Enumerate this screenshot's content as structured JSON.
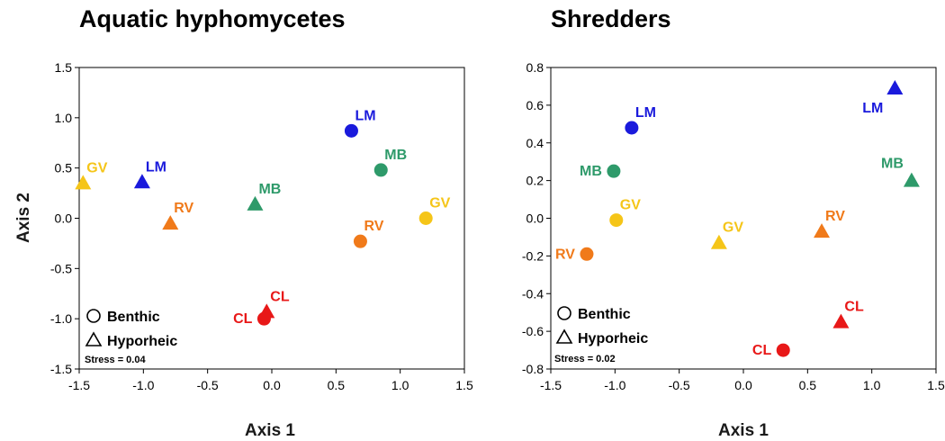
{
  "chart_data": [
    {
      "type": "scatter",
      "title": "Aquatic hyphomycetes",
      "xlabel": "Axis 1",
      "ylabel": "Axis 2",
      "xlim": [
        -1.5,
        1.5
      ],
      "ylim": [
        -1.5,
        1.5
      ],
      "xticks": [
        "-1.5",
        "-1.0",
        "-0.5",
        "0.0",
        "0.5",
        "1.0",
        "1.5"
      ],
      "yticks": [
        "-1.5",
        "-1.0",
        "-0.5",
        "0.0",
        "0.5",
        "1.0",
        "1.5"
      ],
      "legend": {
        "position": "bottom-left",
        "benthic": "Benthic",
        "hyporheic": "Hyporheic"
      },
      "stress": "Stress = 0.04",
      "points": [
        {
          "label": "LM",
          "habitat": "benthic",
          "x": 0.62,
          "y": 0.87,
          "color": "#1a1adc",
          "label_pos": "above-right"
        },
        {
          "label": "MB",
          "habitat": "benthic",
          "x": 0.85,
          "y": 0.48,
          "color": "#2e9a6a",
          "label_pos": "above-right"
        },
        {
          "label": "GV",
          "habitat": "benthic",
          "x": 1.2,
          "y": 0.0,
          "color": "#f5c518",
          "label_pos": "above-right"
        },
        {
          "label": "RV",
          "habitat": "benthic",
          "x": 0.69,
          "y": -0.23,
          "color": "#f07a1a",
          "label_pos": "above-right"
        },
        {
          "label": "CL",
          "habitat": "benthic",
          "x": -0.06,
          "y": -1.0,
          "color": "#e81818",
          "label_pos": "left"
        },
        {
          "label": "GV",
          "habitat": "hyporheic",
          "x": -1.47,
          "y": 0.35,
          "color": "#f5c518",
          "label_pos": "above-right"
        },
        {
          "label": "LM",
          "habitat": "hyporheic",
          "x": -1.01,
          "y": 0.36,
          "color": "#1a1adc",
          "label_pos": "above-right"
        },
        {
          "label": "RV",
          "habitat": "hyporheic",
          "x": -0.79,
          "y": -0.05,
          "color": "#f07a1a",
          "label_pos": "above-right"
        },
        {
          "label": "MB",
          "habitat": "hyporheic",
          "x": -0.13,
          "y": 0.14,
          "color": "#2e9a6a",
          "label_pos": "above-right"
        },
        {
          "label": "CL",
          "habitat": "hyporheic",
          "x": -0.04,
          "y": -0.93,
          "color": "#e81818",
          "label_pos": "above-right"
        }
      ]
    },
    {
      "type": "scatter",
      "title": "Shredders",
      "xlabel": "Axis 1",
      "ylabel": "",
      "xlim": [
        -1.5,
        1.5
      ],
      "ylim": [
        -0.8,
        0.8
      ],
      "xticks": [
        "-1.5",
        "-1.0",
        "-0.5",
        "0.0",
        "0.5",
        "1.0",
        "1.5"
      ],
      "yticks": [
        "-0.8",
        "-0.6",
        "-0.4",
        "-0.2",
        "0.0",
        "0.2",
        "0.4",
        "0.6",
        "0.8"
      ],
      "legend": {
        "position": "bottom-left",
        "benthic": "Benthic",
        "hyporheic": "Hyporheic"
      },
      "stress": "Stress = 0.02",
      "points": [
        {
          "label": "LM",
          "habitat": "benthic",
          "x": -0.87,
          "y": 0.48,
          "color": "#1a1adc",
          "label_pos": "above-right"
        },
        {
          "label": "MB",
          "habitat": "benthic",
          "x": -1.01,
          "y": 0.25,
          "color": "#2e9a6a",
          "label_pos": "left"
        },
        {
          "label": "GV",
          "habitat": "benthic",
          "x": -0.99,
          "y": -0.01,
          "color": "#f5c518",
          "label_pos": "above-right"
        },
        {
          "label": "RV",
          "habitat": "benthic",
          "x": -1.22,
          "y": -0.19,
          "color": "#f07a1a",
          "label_pos": "left"
        },
        {
          "label": "CL",
          "habitat": "benthic",
          "x": 0.31,
          "y": -0.7,
          "color": "#e81818",
          "label_pos": "left"
        },
        {
          "label": "LM",
          "habitat": "hyporheic",
          "x": 1.18,
          "y": 0.69,
          "color": "#1a1adc",
          "label_pos": "below-left"
        },
        {
          "label": "MB",
          "habitat": "hyporheic",
          "x": 1.31,
          "y": 0.2,
          "color": "#2e9a6a",
          "label_pos": "above-left"
        },
        {
          "label": "RV",
          "habitat": "hyporheic",
          "x": 0.61,
          "y": -0.07,
          "color": "#f07a1a",
          "label_pos": "above-right"
        },
        {
          "label": "GV",
          "habitat": "hyporheic",
          "x": -0.19,
          "y": -0.13,
          "color": "#f5c518",
          "label_pos": "above-right"
        },
        {
          "label": "CL",
          "habitat": "hyporheic",
          "x": 0.76,
          "y": -0.55,
          "color": "#e81818",
          "label_pos": "above-right"
        }
      ]
    }
  ]
}
